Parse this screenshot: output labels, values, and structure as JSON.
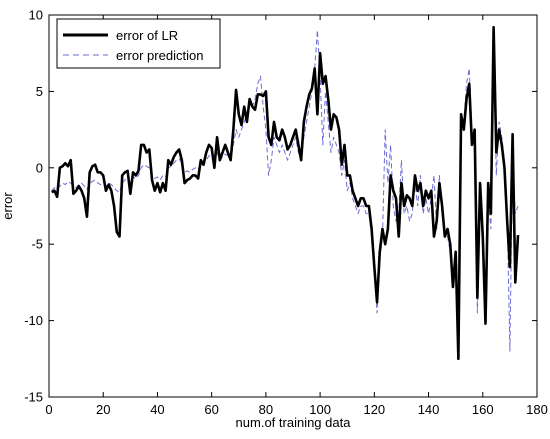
{
  "chart_data": {
    "type": "line",
    "xlabel": "num.of training data",
    "ylabel": "error",
    "xlim": [
      0,
      180
    ],
    "ylim": [
      -15,
      10
    ],
    "xticks": [
      0,
      20,
      40,
      60,
      80,
      100,
      120,
      140,
      160,
      180
    ],
    "yticks": [
      -15,
      -10,
      -5,
      0,
      5,
      10
    ],
    "grid": false,
    "legend_position": "top-left",
    "series": [
      {
        "name": "error of LR",
        "style": "solid",
        "color": "#000000",
        "x": [
          1,
          2,
          3,
          4,
          5,
          6,
          7,
          8,
          9,
          10,
          11,
          12,
          13,
          14,
          15,
          16,
          17,
          18,
          19,
          20,
          21,
          22,
          23,
          24,
          25,
          26,
          27,
          28,
          29,
          30,
          31,
          32,
          33,
          34,
          35,
          36,
          37,
          38,
          39,
          40,
          41,
          42,
          43,
          44,
          45,
          46,
          47,
          48,
          49,
          50,
          51,
          52,
          53,
          54,
          55,
          56,
          57,
          58,
          59,
          60,
          61,
          62,
          63,
          64,
          65,
          66,
          67,
          68,
          69,
          70,
          71,
          72,
          73,
          74,
          75,
          76,
          77,
          78,
          79,
          80,
          81,
          82,
          83,
          84,
          85,
          86,
          87,
          88,
          89,
          90,
          91,
          92,
          93,
          94,
          95,
          96,
          97,
          98,
          99,
          100,
          101,
          102,
          103,
          104,
          105,
          106,
          107,
          108,
          109,
          110,
          111,
          112,
          113,
          114,
          115,
          116,
          117,
          118,
          119,
          120,
          121,
          122,
          123,
          124,
          125,
          126,
          127,
          128,
          129,
          130,
          131,
          132,
          133,
          134,
          135,
          136,
          137,
          138,
          139,
          140,
          141,
          142,
          143,
          144,
          145,
          146,
          147,
          148,
          149,
          150,
          151,
          152,
          153,
          154,
          155,
          156,
          157,
          158,
          159,
          160,
          161,
          162,
          163,
          164,
          165,
          166,
          167,
          168,
          169,
          170,
          171,
          172,
          173
        ],
        "y": [
          -1.6,
          -1.5,
          -1.9,
          0.0,
          0.1,
          0.3,
          0.1,
          0.5,
          -1.7,
          -1.5,
          -1.2,
          -1.5,
          -2.0,
          -3.2,
          -0.3,
          0.1,
          0.2,
          -0.3,
          -0.3,
          -0.5,
          -1.5,
          -1.1,
          -1.5,
          -2.5,
          -4.2,
          -4.5,
          -0.5,
          -0.3,
          -0.2,
          -1.7,
          -0.3,
          -0.5,
          -0.2,
          1.5,
          1.5,
          1.0,
          1.2,
          -0.8,
          -1.5,
          -1.0,
          -1.6,
          -1.0,
          -1.5,
          0.5,
          0.2,
          0.7,
          1.0,
          1.2,
          0.5,
          -1.0,
          -0.8,
          -0.7,
          -0.5,
          -0.5,
          -0.7,
          0.5,
          0.2,
          1.0,
          1.5,
          1.3,
          0.0,
          2.0,
          0.5,
          1.0,
          1.5,
          1.0,
          0.5,
          2.5,
          5.1,
          3.5,
          2.8,
          4.0,
          3.0,
          4.5,
          4.0,
          3.8,
          4.8,
          4.8,
          4.7,
          5.0,
          2.0,
          1.5,
          3.0,
          2.0,
          1.8,
          2.5,
          2.0,
          1.2,
          1.5,
          2.0,
          2.5,
          1.5,
          0.5,
          3.0,
          4.0,
          4.8,
          5.2,
          6.5,
          3.5,
          7.5,
          5.5,
          6.0,
          4.5,
          2.5,
          3.5,
          3.3,
          2.5,
          0.2,
          1.5,
          -0.5,
          -0.5,
          -1.5,
          -2.0,
          -2.5,
          -2.0,
          -2.0,
          -2.5,
          -2.5,
          -4.0,
          -6.5,
          -8.8,
          -5.5,
          -4.0,
          -5.0,
          -4.0,
          -0.5,
          -1.5,
          -2.0,
          -4.5,
          -1.0,
          -2.5,
          -1.8,
          -2.0,
          -2.5,
          -0.5,
          -1.5,
          -1.0,
          -2.5,
          -1.5,
          -2.0,
          -1.5,
          -4.5,
          -3.5,
          -1.0,
          -2.5,
          -4.5,
          -4.0,
          -5.0,
          -7.8,
          -5.5,
          -12.5,
          3.5,
          2.5,
          4.5,
          5.5,
          1.5,
          2.5,
          -8.5,
          -1.0,
          -4.5,
          -10.2,
          -1.0,
          -3.0,
          9.2,
          1.0,
          2.5,
          1.5,
          0.0,
          -3.5,
          -6.5,
          2.2,
          -7.5,
          -4.4
        ]
      },
      {
        "name": "error prediction",
        "style": "dashed",
        "color": "#6b6bd6",
        "x": [
          1,
          2,
          3,
          4,
          5,
          6,
          7,
          8,
          9,
          10,
          11,
          12,
          13,
          14,
          15,
          16,
          17,
          18,
          19,
          20,
          21,
          22,
          23,
          24,
          25,
          26,
          27,
          28,
          29,
          30,
          31,
          32,
          33,
          34,
          35,
          36,
          37,
          38,
          39,
          40,
          41,
          42,
          43,
          44,
          45,
          46,
          47,
          48,
          49,
          50,
          51,
          52,
          53,
          54,
          55,
          56,
          57,
          58,
          59,
          60,
          61,
          62,
          63,
          64,
          65,
          66,
          67,
          68,
          69,
          70,
          71,
          72,
          73,
          74,
          75,
          76,
          77,
          78,
          79,
          80,
          81,
          82,
          83,
          84,
          85,
          86,
          87,
          88,
          89,
          90,
          91,
          92,
          93,
          94,
          95,
          96,
          97,
          98,
          99,
          100,
          101,
          102,
          103,
          104,
          105,
          106,
          107,
          108,
          109,
          110,
          111,
          112,
          113,
          114,
          115,
          116,
          117,
          118,
          119,
          120,
          121,
          122,
          123,
          124,
          125,
          126,
          127,
          128,
          129,
          130,
          131,
          132,
          133,
          134,
          135,
          136,
          137,
          138,
          139,
          140,
          141,
          142,
          143,
          144,
          145,
          146,
          147,
          148,
          149,
          150,
          151,
          152,
          153,
          154,
          155,
          156,
          157,
          158,
          159,
          160,
          161,
          162,
          163,
          164,
          165,
          166,
          167,
          168,
          169,
          170,
          171,
          172,
          173
        ],
        "y": [
          -1.5,
          -1.3,
          -1.4,
          -1.2,
          -1.0,
          -1.1,
          -0.9,
          -1.0,
          -1.2,
          -1.3,
          -1.1,
          -1.0,
          -1.2,
          -1.4,
          -1.0,
          -0.9,
          -0.8,
          -1.0,
          -1.1,
          -1.0,
          -1.2,
          -1.0,
          -1.1,
          -1.3,
          -1.5,
          -1.6,
          -1.0,
          -0.8,
          -0.7,
          -1.0,
          -0.6,
          -0.7,
          -0.5,
          0.0,
          0.2,
          0.1,
          0.0,
          -0.5,
          -0.7,
          -0.6,
          -0.8,
          -0.5,
          -0.6,
          0.0,
          0.1,
          0.3,
          0.5,
          0.6,
          0.3,
          -0.3,
          -0.2,
          -0.3,
          -0.1,
          0.0,
          -0.1,
          0.3,
          0.2,
          0.5,
          0.8,
          0.7,
          0.3,
          1.0,
          0.5,
          0.7,
          0.9,
          0.8,
          0.5,
          1.5,
          2.5,
          2.0,
          2.5,
          3.0,
          3.5,
          4.5,
          4.0,
          4.5,
          5.5,
          6.0,
          4.0,
          2.5,
          -0.5,
          0.5,
          2.0,
          1.5,
          1.0,
          1.5,
          1.0,
          0.5,
          1.0,
          1.5,
          2.0,
          1.0,
          0.5,
          2.0,
          3.0,
          4.0,
          5.0,
          6.5,
          9.0,
          6.0,
          1.5,
          5.0,
          3.0,
          1.0,
          2.0,
          1.5,
          1.0,
          -0.5,
          0.5,
          -1.5,
          -1.0,
          -2.0,
          -2.5,
          -3.0,
          -2.5,
          -2.5,
          -3.0,
          -3.0,
          -4.5,
          -6.0,
          -9.5,
          -6.0,
          -4.5,
          2.5,
          -1.0,
          1.5,
          -2.5,
          -3.5,
          -3.0,
          0.5,
          -3.0,
          -2.5,
          -3.5,
          -3.0,
          -1.0,
          -2.5,
          -0.5,
          -3.0,
          -2.0,
          -3.0,
          -2.0,
          -0.5,
          -4.0,
          -0.5,
          -3.0,
          -4.5,
          -4.5,
          -5.5,
          -7.0,
          -6.0,
          -11.5,
          2.5,
          3.0,
          5.5,
          6.5,
          2.5,
          2.0,
          -9.5,
          -2.0,
          -5.0,
          -9.5,
          -2.0,
          -4.0,
          7.0,
          -0.5,
          3.0,
          2.0,
          0.5,
          -3.0,
          -12.0,
          1.0,
          -3.0,
          -2.5
        ]
      }
    ]
  }
}
